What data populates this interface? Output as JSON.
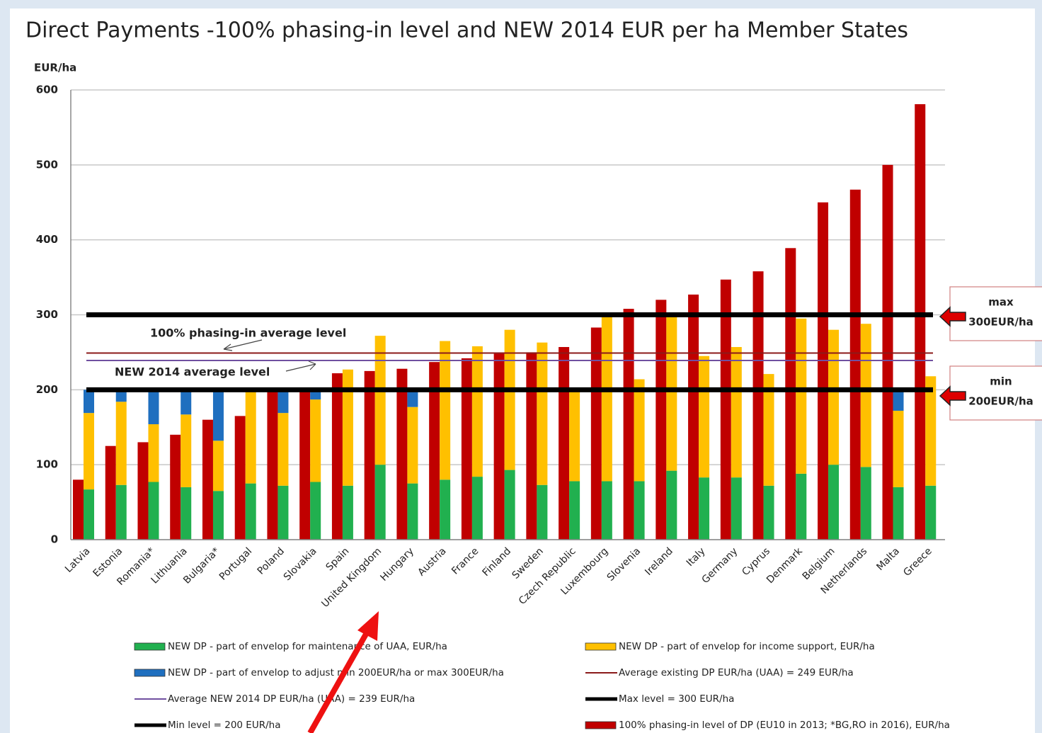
{
  "chart_data": {
    "type": "bar",
    "title": "Direct Payments -100% phasing-in level and NEW 2014 EUR per ha Member States",
    "y_label": "EUR/ha",
    "categories": [
      "Latvia",
      "Estonia",
      "Romania*",
      "Lithuania",
      "Bulgaria*",
      "Portugal",
      "Poland",
      "Slovakia",
      "Spain",
      "United Kingdom",
      "Hungary",
      "Austria",
      "France",
      "Finland",
      "Sweden",
      "Czech Republic",
      "Luxembourg",
      "Slovenia",
      "Ireland",
      "Italy",
      "Germany",
      "Cyprus",
      "Denmark",
      "Belgium",
      "Netherlands",
      "Malta",
      "Greece"
    ],
    "series": [
      {
        "name": "100% phasing-in level of DP (EU10 in 2013; *BG,RO in 2016), EUR/ha",
        "color": "#c00000",
        "values": [
          80,
          125,
          130,
          140,
          160,
          165,
          200,
          200,
          222,
          225,
          228,
          237,
          242,
          248,
          250,
          257,
          283,
          308,
          320,
          327,
          347,
          358,
          389,
          450,
          467,
          500,
          581
        ]
      },
      {
        "name": "NEW DP - part of envelop for maintenance of UAA, EUR/ha",
        "color": "#21b04f",
        "values": [
          67,
          73,
          77,
          70,
          65,
          75,
          72,
          77,
          72,
          100,
          75,
          80,
          84,
          93,
          73,
          78,
          78,
          78,
          92,
          83,
          83,
          72,
          88,
          100,
          97,
          70,
          72
        ]
      },
      {
        "name": "NEW DP - part of envelop for income support, EUR/ha",
        "color": "#ffc000",
        "values": [
          102,
          111,
          77,
          97,
          67,
          125,
          97,
          110,
          155,
          172,
          102,
          185,
          174,
          187,
          190,
          122,
          222,
          136,
          208,
          162,
          174,
          149,
          207,
          180,
          191,
          102,
          146
        ]
      },
      {
        "name": "NEW DP - part of envelop to adjust min 200EUR/ha or max 300EUR/ha",
        "color": "#1f6fbf",
        "values": [
          31,
          16,
          46,
          33,
          68,
          0,
          31,
          13,
          0,
          0,
          23,
          0,
          0,
          0,
          0,
          0,
          0,
          0,
          0,
          0,
          0,
          0,
          0,
          0,
          0,
          28,
          0
        ]
      }
    ],
    "lines": [
      {
        "name": "Average existing DP EUR/ha (UAA) = 249 EUR/ha",
        "value": 249,
        "color": "#8b1a1a"
      },
      {
        "name": "Average NEW 2014 DP EUR/ha (UAA) = 239 EUR/ha",
        "value": 239,
        "color": "#7050a0"
      },
      {
        "name": "Max level = 300 EUR/ha",
        "value": 300,
        "color": "#000000"
      },
      {
        "name": "Min level = 200 EUR/ha",
        "value": 200,
        "color": "#000000"
      }
    ],
    "annotations": [
      "100% phasing-in average level",
      "NEW 2014 average level"
    ],
    "side_labels": [
      [
        "max",
        "300EUR/ha"
      ],
      [
        "min",
        "200EUR/ha"
      ]
    ],
    "ylim": [
      0,
      600
    ],
    "yticks": [
      0,
      100,
      200,
      300,
      400,
      500,
      600
    ],
    "grid": true
  }
}
